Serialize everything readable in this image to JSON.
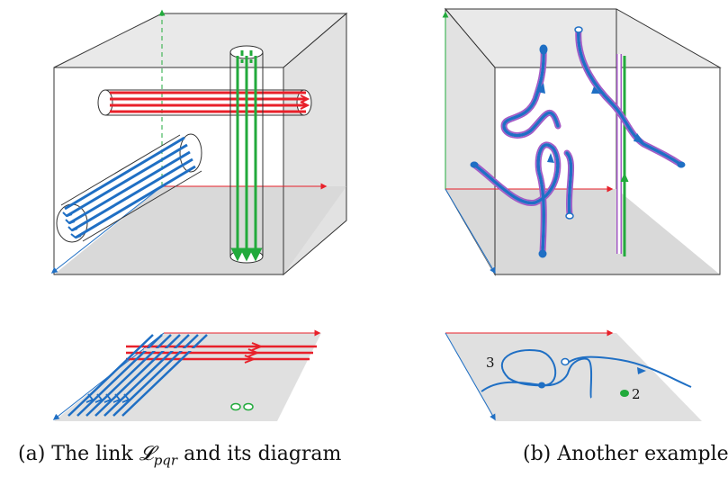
{
  "figures": [
    {
      "caption_prefix": "(a) The link ",
      "caption_symbol": "𝓛",
      "caption_subscript": "pqr",
      "caption_suffix": " and its diagram"
    },
    {
      "caption": "(b) Another example",
      "labels": [
        "3",
        "2"
      ]
    }
  ],
  "colors": {
    "red": "#e8202a",
    "green": "#22aa3c",
    "blue": "#1f6fc4",
    "purple": "#a45ac6",
    "floor": "#d9d9d9",
    "wall": "#e6e6e6",
    "edge": "#333333"
  }
}
